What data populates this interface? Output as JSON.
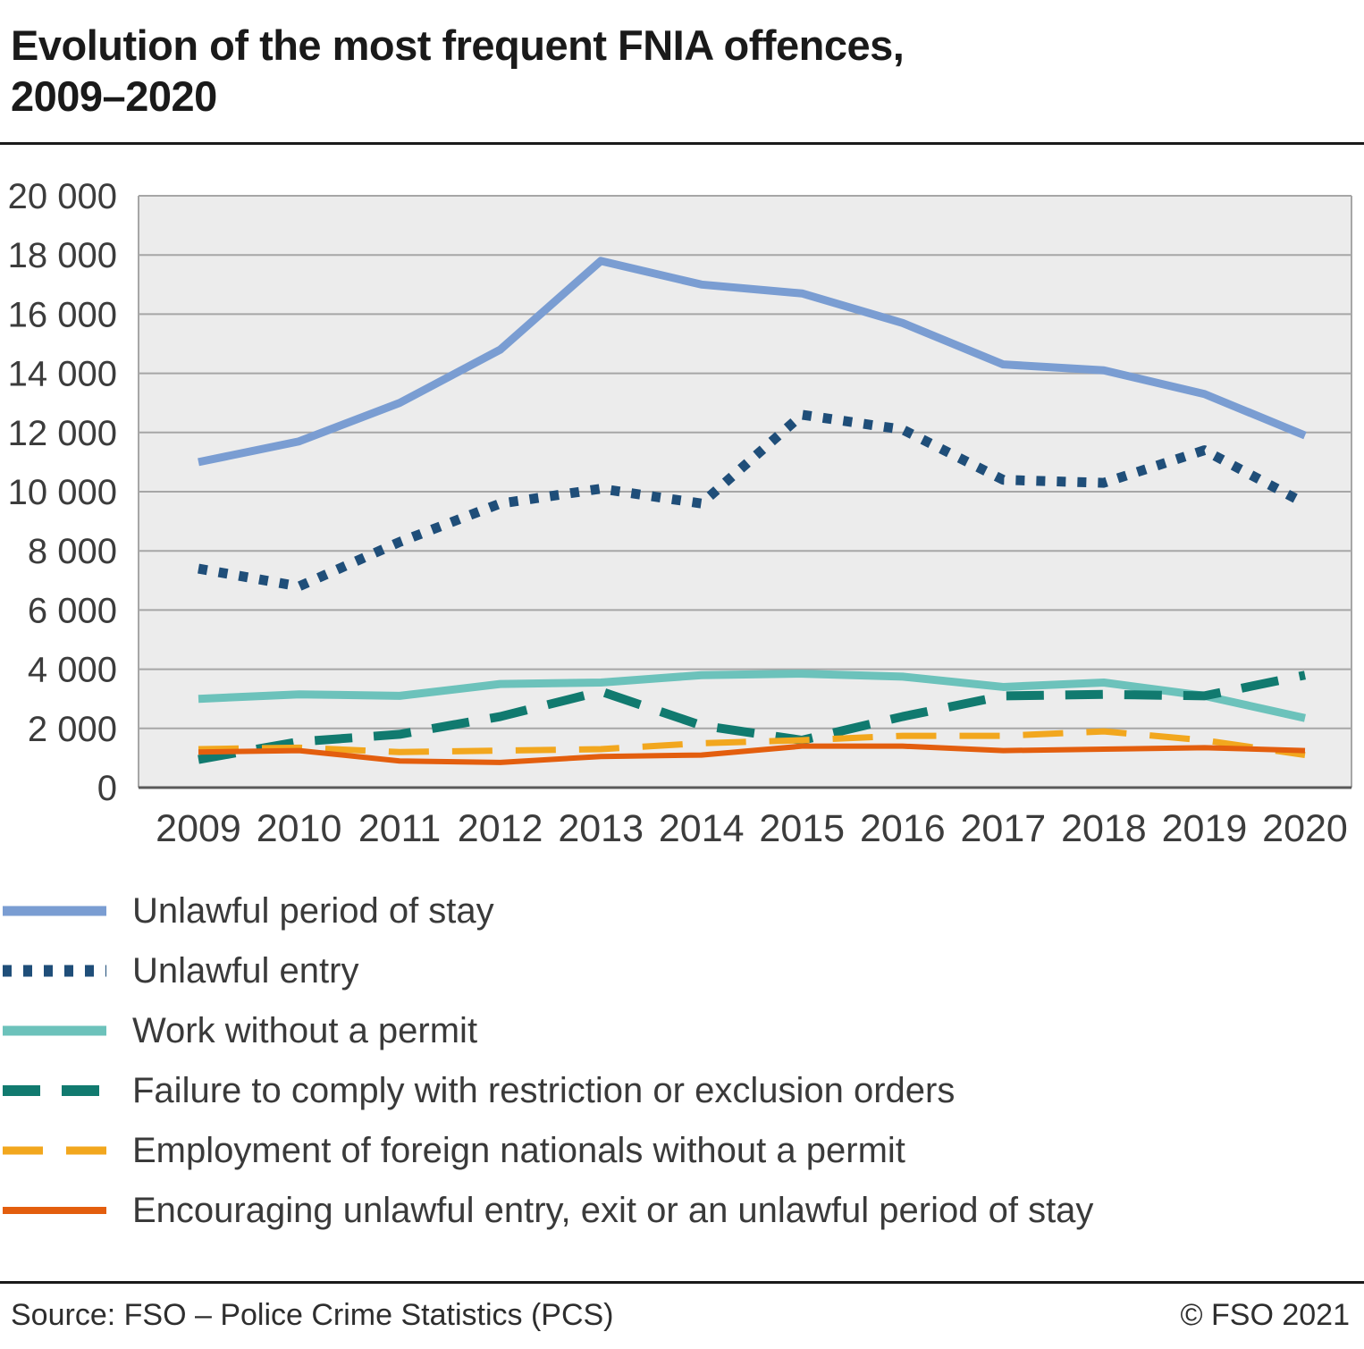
{
  "title": "Evolution of the most frequent FNIA offences,\n2009–2020",
  "footer": {
    "source": "Source: FSO – Police Crime Statistics (PCS)",
    "copyright": "© FSO 2021"
  },
  "chart_data": {
    "type": "line",
    "title": "Evolution of the most frequent FNIA offences, 2009–2020",
    "xlabel": "",
    "ylabel": "",
    "x": [
      2009,
      2010,
      2011,
      2012,
      2013,
      2014,
      2015,
      2016,
      2017,
      2018,
      2019,
      2020
    ],
    "ylim": [
      0,
      20000
    ],
    "yticks": [
      0,
      2000,
      4000,
      6000,
      8000,
      10000,
      12000,
      14000,
      16000,
      18000,
      20000
    ],
    "ytick_labels": [
      "0",
      "2 000",
      "4 000",
      "6 000",
      "8 000",
      "10 000",
      "12 000",
      "14 000",
      "16 000",
      "18 000",
      "20 000"
    ],
    "grid": true,
    "legend_position": "bottom-left",
    "plot_bg": "#ececec",
    "grid_color": "#a6a6a6",
    "axis_text_color": "#3c3c3c",
    "series": [
      {
        "id": "unlawful-period-of-stay",
        "name": "Unlawful period of stay",
        "color": "#7a9dd2",
        "style": "solid",
        "dash": "",
        "width": 9,
        "values": [
          11000,
          11700,
          13000,
          14800,
          17800,
          17000,
          16700,
          15700,
          14300,
          14100,
          13300,
          11900
        ]
      },
      {
        "id": "unlawful-entry",
        "name": "Unlawful entry",
        "color": "#1f4e79",
        "style": "dotted",
        "dash": "10 13",
        "width": 11,
        "values": [
          7400,
          6800,
          8300,
          9600,
          10100,
          9600,
          12600,
          12100,
          10400,
          10300,
          11400,
          9600
        ]
      },
      {
        "id": "work-without-permit",
        "name": "Work without a permit",
        "color": "#6cc2bb",
        "style": "solid",
        "dash": "",
        "width": 9,
        "values": [
          3000,
          3150,
          3100,
          3500,
          3550,
          3800,
          3850,
          3750,
          3400,
          3550,
          3100,
          2350
        ]
      },
      {
        "id": "failure-to-comply",
        "name": "Failure to comply with restriction or exclusion orders",
        "color": "#117a6f",
        "style": "dashed",
        "dash": "42 24",
        "width": 10,
        "values": [
          950,
          1550,
          1800,
          2400,
          3250,
          2100,
          1600,
          2400,
          3100,
          3150,
          3100,
          3800
        ]
      },
      {
        "id": "employment-without-permit",
        "name": "Employment of foreign nationals without a permit",
        "color": "#f2a71e",
        "style": "dashed",
        "dash": "45 26",
        "width": 7,
        "values": [
          1300,
          1350,
          1200,
          1250,
          1300,
          1500,
          1600,
          1750,
          1750,
          1900,
          1600,
          1100
        ]
      },
      {
        "id": "encouraging-unlawful-entry",
        "name": "Encouraging unlawful entry, exit or an unlawful period of stay",
        "color": "#e35e0e",
        "style": "solid",
        "dash": "",
        "width": 6,
        "values": [
          1200,
          1250,
          900,
          850,
          1050,
          1100,
          1400,
          1400,
          1250,
          1300,
          1350,
          1250
        ]
      }
    ]
  }
}
